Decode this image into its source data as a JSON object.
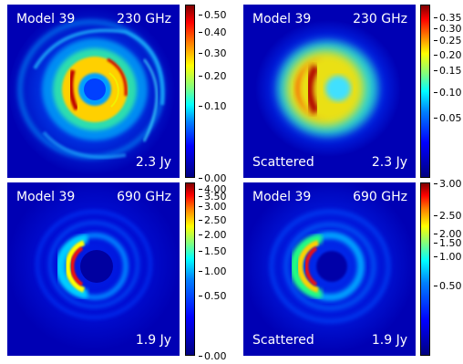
{
  "panels": [
    {
      "model": "Model 39",
      "freq": "230 GHz",
      "flux": "2.3 Jy",
      "variant": ""
    },
    {
      "model": "Model 39",
      "freq": "230 GHz",
      "flux": "2.3 Jy",
      "variant": "Scattered"
    },
    {
      "model": "Model 39",
      "freq": "690 GHz",
      "flux": "1.9 Jy",
      "variant": ""
    },
    {
      "model": "Model 39",
      "freq": "690 GHz",
      "flux": "1.9 Jy",
      "variant": "Scattered"
    }
  ],
  "colorbars": [
    {
      "colormap": "jet",
      "scale": "sqrt",
      "ticks": [
        "0.50",
        "0.40",
        "0.30",
        "0.20",
        "0.10",
        "0.00"
      ],
      "tick_values": [
        0.5,
        0.4,
        0.3,
        0.2,
        0.1,
        0.0
      ],
      "vmax": 0.55
    },
    {
      "colormap": "jet",
      "scale": "sqrt",
      "ticks": [
        "0.35",
        "0.30",
        "0.25",
        "0.20",
        "0.15",
        "0.10",
        "0.05"
      ],
      "tick_values": [
        0.35,
        0.3,
        0.25,
        0.2,
        0.15,
        0.1,
        0.05
      ],
      "vmax": 0.39
    },
    {
      "colormap": "jet",
      "scale": "sqrt",
      "ticks": [
        "4.00",
        "3.50",
        "3.00",
        "2.50",
        "2.00",
        "1.50",
        "1.00",
        "0.50",
        "0.00"
      ],
      "tick_values": [
        4.0,
        3.5,
        3.0,
        2.5,
        2.0,
        1.5,
        1.0,
        0.5,
        0.0
      ],
      "vmax": 4.1
    },
    {
      "colormap": "jet",
      "scale": "sqrt",
      "ticks": [
        "3.00",
        "2.50",
        "2.00",
        "1.50",
        "1.00",
        "0.50"
      ],
      "tick_values": [
        3.0,
        2.5,
        2.0,
        1.5,
        1.0,
        0.5
      ],
      "vmax": 3.08
    }
  ],
  "colors": {
    "background": "#0000b4",
    "label": "#ffffff"
  }
}
